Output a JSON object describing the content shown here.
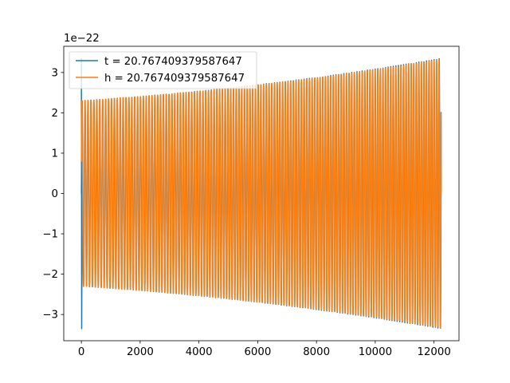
{
  "chart_data": {
    "type": "line",
    "title": "",
    "xlabel": "",
    "ylabel": "",
    "y_offset_label": "1e−22",
    "xlim": [
      -600,
      12850
    ],
    "ylim": [
      -3.65,
      3.65
    ],
    "x_ticks": [
      0,
      2000,
      4000,
      6000,
      8000,
      10000,
      12000
    ],
    "y_ticks": [
      -3,
      -2,
      -1,
      0,
      1,
      2,
      3
    ],
    "grid": false,
    "legend_position": "top-left",
    "series": [
      {
        "name": "t = 20.767409379587647",
        "color": "#1f77b4",
        "x_range": [
          0,
          12240
        ],
        "start_amplitude": 2.3,
        "end_amplitude": 3.35,
        "initial_spike": [
          3.35,
          -3.35
        ],
        "approx_cycles": 132
      },
      {
        "name": "h = 20.767409379587647",
        "color": "#ff7f0e",
        "x_range": [
          0,
          12240
        ],
        "start_amplitude": 2.3,
        "end_amplitude": 3.33,
        "approx_cycles": 132
      }
    ]
  }
}
